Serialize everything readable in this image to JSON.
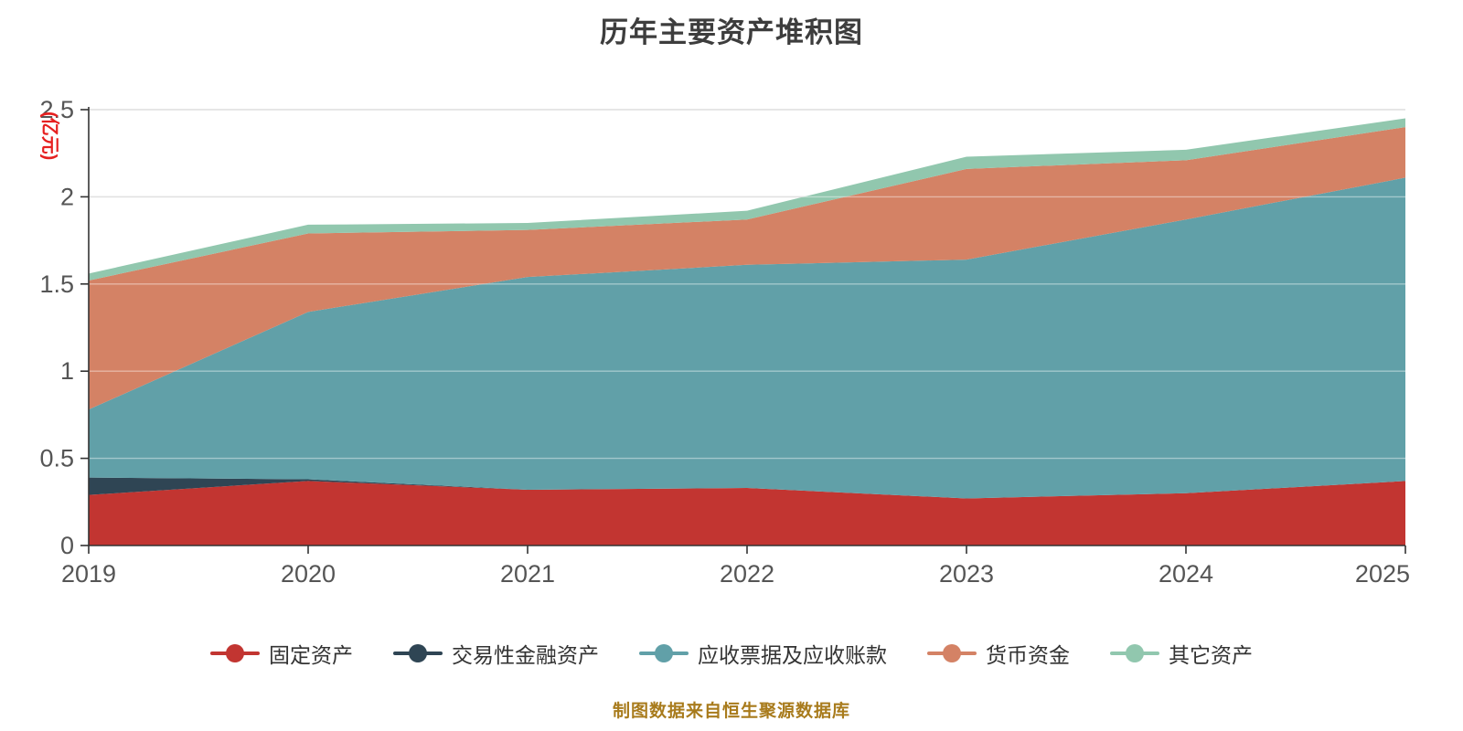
{
  "title": "历年主要资产堆积图",
  "y_axis": {
    "name": "(亿元)",
    "name_color": "#e62020",
    "ticks": [
      0,
      0.5,
      1,
      1.5,
      2,
      2.5
    ],
    "tick_labels": [
      "0",
      "0.5",
      "1",
      "1.5",
      "2",
      "2.5"
    ]
  },
  "x_axis": {
    "categories": [
      "2019",
      "2020",
      "2021",
      "2022",
      "2023",
      "2024",
      "2025"
    ]
  },
  "chart_data": {
    "type": "area",
    "stacked": true,
    "title": "历年主要资产堆积图",
    "xlabel": "",
    "ylabel": "(亿元)",
    "ylim": [
      0,
      2.5
    ],
    "grid": true,
    "legend_position": "bottom",
    "categories": [
      "2019",
      "2020",
      "2021",
      "2022",
      "2023",
      "2024",
      "2025"
    ],
    "series": [
      {
        "key": "fixed-assets",
        "name": "固定资产",
        "color": "#c23531",
        "values": [
          0.29,
          0.37,
          0.32,
          0.33,
          0.27,
          0.3,
          0.37
        ]
      },
      {
        "key": "trading-financial-assets",
        "name": "交易性金融资产",
        "color": "#2f4554",
        "values": [
          0.1,
          0.01,
          0.0,
          0.0,
          0.0,
          0.0,
          0.0
        ]
      },
      {
        "key": "notes-and-receivables",
        "name": "应收票据及应收账款",
        "color": "#61a0a8",
        "values": [
          0.39,
          0.96,
          1.22,
          1.28,
          1.37,
          1.57,
          1.74
        ]
      },
      {
        "key": "cash-funds",
        "name": "货币资金",
        "color": "#d48265",
        "values": [
          0.74,
          0.45,
          0.27,
          0.26,
          0.52,
          0.34,
          0.29
        ]
      },
      {
        "key": "other-assets",
        "name": "其它资产",
        "color": "#91c7ae",
        "values": [
          0.04,
          0.05,
          0.04,
          0.05,
          0.07,
          0.06,
          0.05
        ]
      }
    ]
  },
  "footer": {
    "text": "制图数据来自恒生聚源数据库",
    "color": "#a87b1c"
  }
}
